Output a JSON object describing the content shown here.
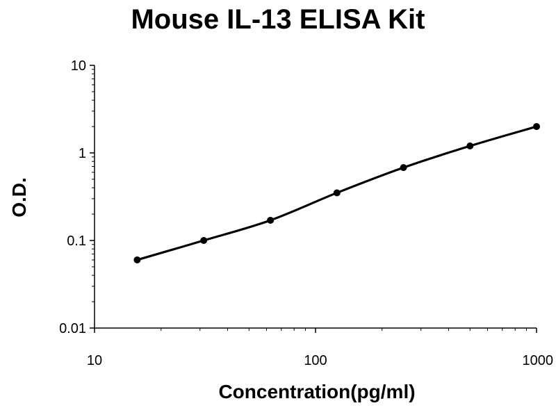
{
  "chart_data": {
    "type": "line",
    "title": "Mouse IL-13 ELISA Kit",
    "xlabel": "Concentration(pg/ml)",
    "ylabel": "O.D.",
    "xscale": "log",
    "yscale": "log",
    "xlim": [
      10,
      1000
    ],
    "ylim": [
      0.01,
      10
    ],
    "xticks": [
      "10",
      "100",
      "1000"
    ],
    "yticks": [
      "10",
      "1",
      "0.1",
      "0.01"
    ],
    "grid": false,
    "series": [
      {
        "x": [
          15.6,
          31.2,
          62.5,
          125,
          250,
          500,
          1000
        ],
        "y": [
          0.06,
          0.1,
          0.17,
          0.35,
          0.68,
          1.2,
          2.0
        ],
        "color": "#000000"
      }
    ]
  }
}
